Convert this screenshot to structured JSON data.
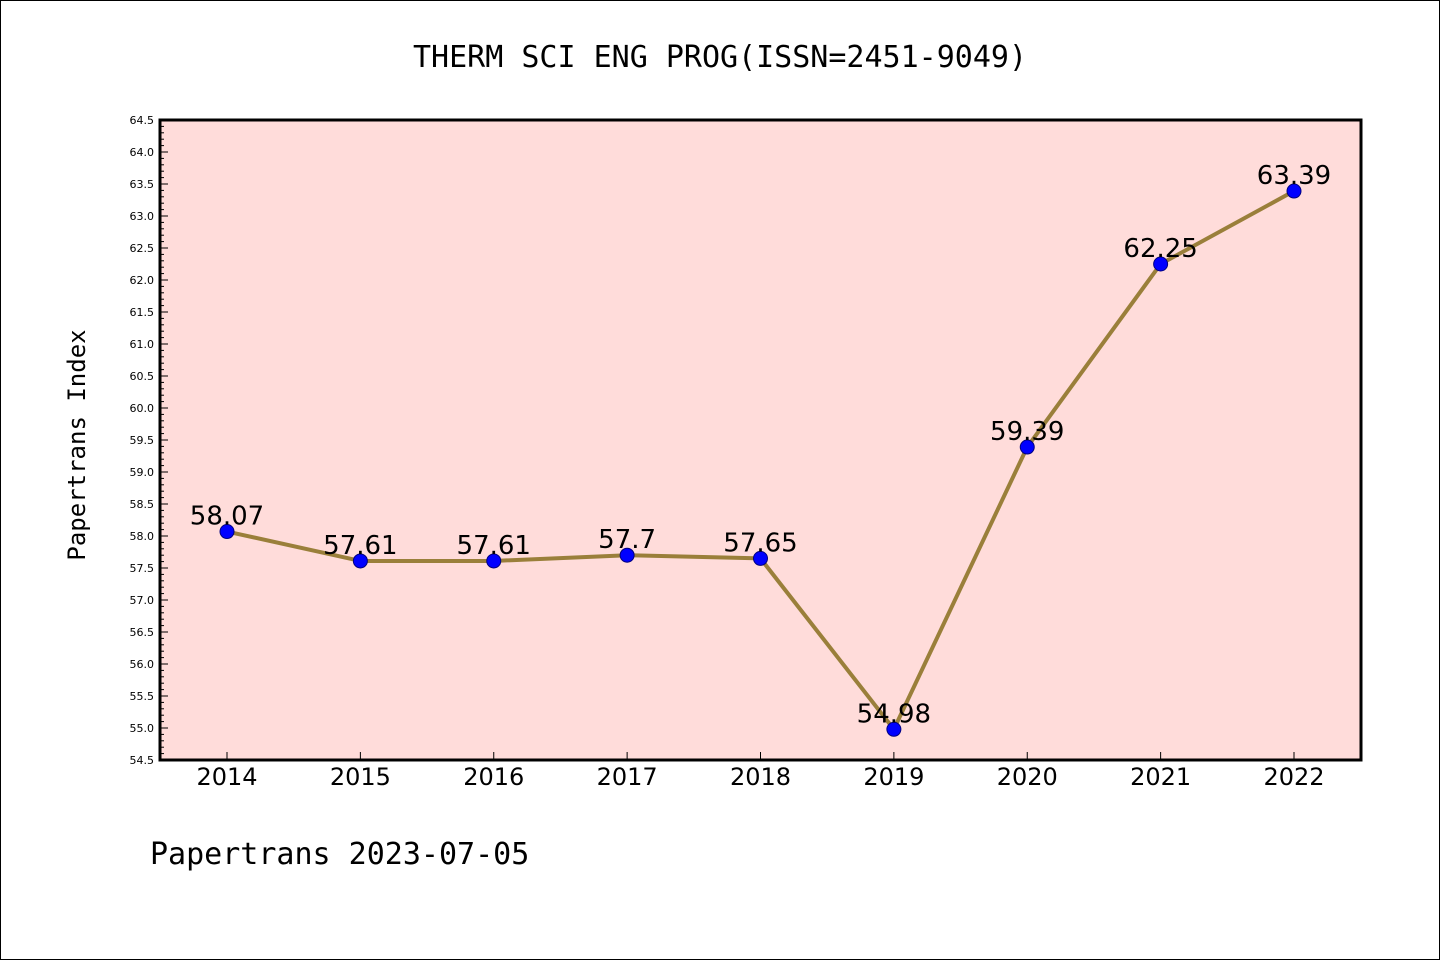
{
  "chart_data": {
    "type": "line",
    "title": "THERM SCI ENG PROG(ISSN=2451-9049)",
    "xlabel": "",
    "ylabel": "Papertrans Index",
    "categories": [
      "2014",
      "2015",
      "2016",
      "2017",
      "2018",
      "2019",
      "2020",
      "2021",
      "2022"
    ],
    "series": [
      {
        "values": [
          58.07,
          57.61,
          57.61,
          57.7,
          57.65,
          54.98,
          59.39,
          62.25,
          63.39
        ],
        "labels": [
          "58.07",
          "57.61",
          "57.61",
          "57.7",
          "57.65",
          "54.98",
          "59.39",
          "62.25",
          "63.39"
        ]
      }
    ],
    "ylim": [
      54.5,
      64.5
    ],
    "yticks": [
      "54.5",
      "55.0",
      "55.5",
      "56.0",
      "56.5",
      "57.0",
      "57.5",
      "58.0",
      "58.5",
      "59.0",
      "59.5",
      "60.0",
      "60.5",
      "61.0",
      "61.5",
      "62.0",
      "62.5",
      "63.0",
      "63.5",
      "64.0",
      "64.5"
    ],
    "grid": false,
    "legend": "none",
    "colors": {
      "plot_background": "#FFDCDA",
      "line": "#9A7F3A",
      "marker_fill": "#0000FF",
      "marker_edge": "#000080"
    }
  },
  "footer": "Papertrans 2023-07-05"
}
